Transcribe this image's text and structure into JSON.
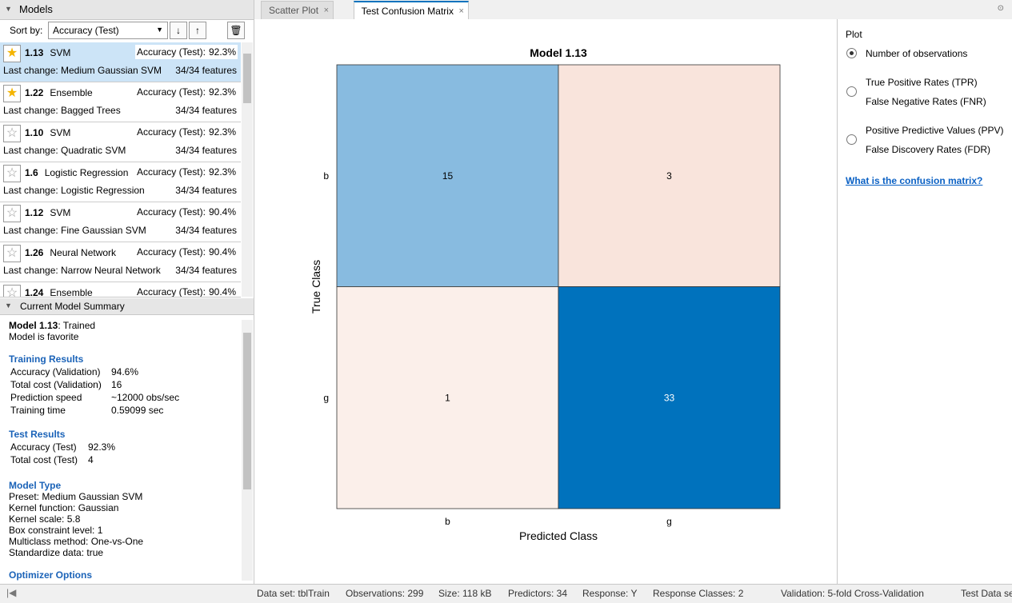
{
  "models_panel": {
    "title": "Models",
    "sort_label": "Sort by:",
    "sort_value": "Accuracy (Test)",
    "models": [
      {
        "id": "1.13",
        "type": "SVM",
        "metric": "Accuracy (Test):",
        "metric_value": "92.3%",
        "last_change_label": "Last change:",
        "last_change": "Medium Gaussian SVM",
        "features": "34/34 features",
        "favorite": true,
        "selected": true
      },
      {
        "id": "1.22",
        "type": "Ensemble",
        "metric": "Accuracy (Test):",
        "metric_value": "92.3%",
        "last_change_label": "Last change:",
        "last_change": "Bagged Trees",
        "features": "34/34 features",
        "favorite": true,
        "selected": false
      },
      {
        "id": "1.10",
        "type": "SVM",
        "metric": "Accuracy (Test):",
        "metric_value": "92.3%",
        "last_change_label": "Last change:",
        "last_change": "Quadratic SVM",
        "features": "34/34 features",
        "favorite": false,
        "selected": false
      },
      {
        "id": "1.6",
        "type": "Logistic Regression",
        "metric": "Accuracy (Test):",
        "metric_value": "92.3%",
        "last_change_label": "Last change:",
        "last_change": "Logistic Regression",
        "features": "34/34 features",
        "favorite": false,
        "selected": false
      },
      {
        "id": "1.12",
        "type": "SVM",
        "metric": "Accuracy (Test):",
        "metric_value": "90.4%",
        "last_change_label": "Last change:",
        "last_change": "Fine Gaussian SVM",
        "features": "34/34 features",
        "favorite": false,
        "selected": false
      },
      {
        "id": "1.26",
        "type": "Neural Network",
        "metric": "Accuracy (Test):",
        "metric_value": "90.4%",
        "last_change_label": "Last change:",
        "last_change": "Narrow Neural Network",
        "features": "34/34 features",
        "favorite": false,
        "selected": false
      },
      {
        "id": "1.24",
        "type": "Ensemble",
        "metric": "Accuracy (Test):",
        "metric_value": "90.4%",
        "favorite": false,
        "selected": false
      }
    ]
  },
  "summary_panel": {
    "title": "Current Model Summary",
    "model": "Model 1.13",
    "status": ": Trained",
    "favorite_note": "Model is favorite",
    "training": {
      "heading": "Training Results",
      "rows": [
        [
          "Accuracy (Validation)",
          "94.6%"
        ],
        [
          "Total cost (Validation)",
          "16"
        ],
        [
          "Prediction speed",
          "~12000 obs/sec"
        ],
        [
          "Training time",
          "0.59099 sec"
        ]
      ]
    },
    "test": {
      "heading": "Test Results",
      "rows": [
        [
          "Accuracy (Test)",
          "92.3%"
        ],
        [
          "Total cost (Test)",
          "4"
        ]
      ]
    },
    "model_type": {
      "heading": "Model Type",
      "lines": [
        "Preset: Medium Gaussian SVM",
        "Kernel function: Gaussian",
        "Kernel scale: 5.8",
        "Box constraint level: 1",
        "Multiclass method: One-vs-One",
        "Standardize data: true"
      ]
    },
    "optimizer_heading": "Optimizer Options"
  },
  "tabs": [
    "Scatter Plot",
    "Test Confusion Matrix"
  ],
  "active_tab": 1,
  "confusion_matrix": {
    "title": "Model 1.13",
    "xlabel": "Predicted Class",
    "ylabel": "True Class",
    "classes": [
      "b",
      "g"
    ],
    "values": [
      [
        15,
        3
      ],
      [
        1,
        33
      ]
    ],
    "colors": [
      [
        "#88bbe0",
        "#f9e4dc"
      ],
      [
        "#fbefea",
        "#0072bd"
      ]
    ]
  },
  "plot_options": {
    "title": "Plot",
    "options": [
      [
        "Number of observations"
      ],
      [
        "True Positive Rates (TPR)",
        "False Negative Rates (FNR)"
      ],
      [
        "Positive Predictive Values (PPV)",
        "False Discovery Rates (FDR)"
      ]
    ],
    "selected": 0,
    "link": "What is the confusion matrix?"
  },
  "status_bar": [
    "Data set: tblTrain",
    "Observations: 299",
    "Size: 118 kB",
    "Predictors: 34",
    "Response: Y",
    "Response Classes: 2",
    "Validation: 5-fold Cross-Validation",
    "Test Data set"
  ]
}
